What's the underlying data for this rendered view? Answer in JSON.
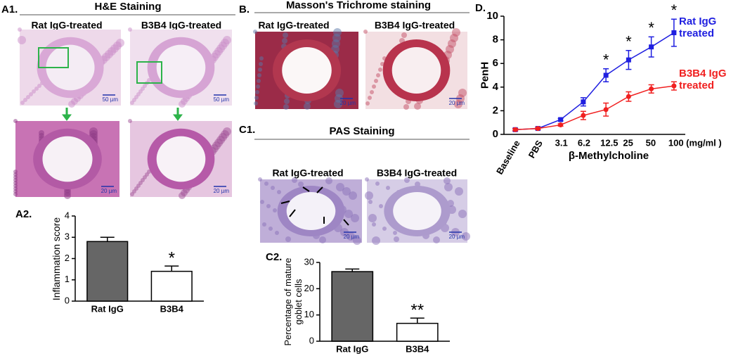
{
  "panel_a1": {
    "label": "A1.",
    "title": "H&E Staining",
    "captions": [
      "Rat IgG-treated",
      "B3B4 IgG-treated"
    ],
    "scale_bars": [
      "50 µm",
      "50 µm",
      "20 µm",
      "20 µm"
    ]
  },
  "panel_b": {
    "label": "B.",
    "title": "Masson's Trichrome staining",
    "captions": [
      "Rat IgG-treated",
      "B3B4 IgG-treated"
    ],
    "scale_bars": [
      "20 µm",
      "20 µm"
    ]
  },
  "panel_c1": {
    "label": "C1.",
    "title": "PAS Staining",
    "captions": [
      "Rat IgG-treated",
      "B3B4 IgG-treated"
    ],
    "scale_bars": [
      "20 µm",
      "20 µm"
    ]
  },
  "chart_data": [
    {
      "type": "bar",
      "label": "A2.",
      "ylabel": "Inflammation score",
      "categories": [
        "Rat IgG",
        "B3B4"
      ],
      "values": [
        2.8,
        1.4
      ],
      "errors": [
        0.2,
        0.25
      ],
      "colors": [
        "#666666",
        "#ffffff"
      ],
      "significance": [
        null,
        "*"
      ],
      "ylim": [
        0,
        4
      ],
      "yticks": [
        0,
        1,
        2,
        3,
        4
      ]
    },
    {
      "type": "bar",
      "label": "C2.",
      "ylabel": "Percentage of mature goblet cells",
      "categories": [
        "Rat IgG",
        "B3B4"
      ],
      "values": [
        26.5,
        6.8
      ],
      "errors": [
        1,
        2
      ],
      "colors": [
        "#666666",
        "#ffffff"
      ],
      "significance": [
        null,
        "**"
      ],
      "ylim": [
        0,
        30
      ],
      "yticks": [
        0,
        10,
        20,
        30
      ]
    },
    {
      "type": "line",
      "label": "D.",
      "ylabel": "PenH",
      "xlabel": "β-Methylcholine",
      "categories": [
        "Baseline",
        "PBS",
        "3.1",
        "6.2",
        "12.5",
        "25",
        "50",
        "100 (mg/ml )"
      ],
      "series": [
        {
          "name": "Rat IgG treated",
          "color": "#1f1fe0",
          "marker": "square",
          "values": [
            0.4,
            0.5,
            1.25,
            2.75,
            5.0,
            6.3,
            7.4,
            8.6
          ],
          "errors": [
            0.1,
            0.1,
            0.1,
            0.35,
            0.55,
            0.8,
            0.85,
            1.15
          ],
          "significance": [
            null,
            null,
            null,
            null,
            "*",
            "*",
            "*",
            "*"
          ]
        },
        {
          "name": "B3B4 IgG treated",
          "color": "#f02020",
          "marker": "circle",
          "values": [
            0.4,
            0.5,
            0.8,
            1.6,
            2.1,
            3.2,
            3.85,
            4.1
          ],
          "errors": [
            0.1,
            0.1,
            0.1,
            0.35,
            0.55,
            0.4,
            0.35,
            0.35
          ]
        }
      ],
      "ylim": [
        0,
        10
      ],
      "yticks": [
        0,
        2,
        4,
        6,
        8,
        10
      ]
    }
  ]
}
